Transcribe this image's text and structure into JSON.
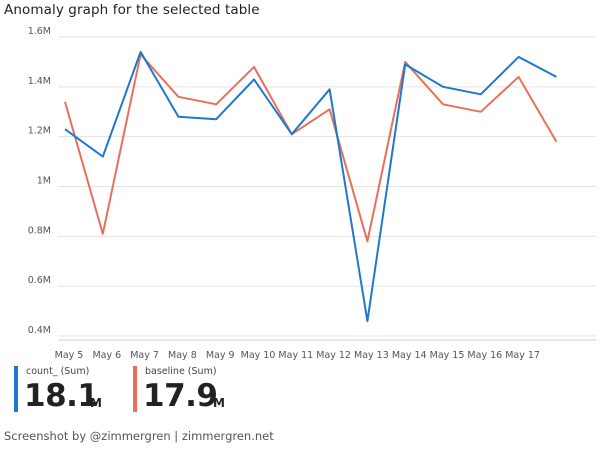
{
  "title": "Anomaly graph for the selected table",
  "footer": "Screenshot by @zimmergren | zimmergren.net",
  "legend": [
    {
      "name": "count_ (Sum)",
      "value": "18.1",
      "unit": "M",
      "color": "#1f77d0"
    },
    {
      "name": "baseline (Sum)",
      "value": "17.9",
      "unit": "M",
      "color": "#e8705a"
    }
  ],
  "chart_data": {
    "type": "line",
    "x": [
      "May 5",
      "May 6",
      "May 7",
      "May 8",
      "May 9",
      "May 10",
      "May 11",
      "May 12",
      "May 13",
      "May 14",
      "May 15",
      "May 16",
      "May 17",
      ""
    ],
    "series": [
      {
        "name": "count_ (Sum)",
        "color": "#1f77d0",
        "values": [
          1.23,
          1.12,
          1.54,
          1.28,
          1.27,
          1.43,
          1.21,
          1.39,
          0.46,
          1.49,
          1.4,
          1.37,
          1.52,
          1.44
        ]
      },
      {
        "name": "baseline (Sum)",
        "color": "#e8705a",
        "values": [
          1.34,
          0.81,
          1.53,
          1.36,
          1.33,
          1.48,
          1.21,
          1.31,
          0.78,
          1.5,
          1.33,
          1.3,
          1.44,
          1.18
        ]
      }
    ],
    "yticks": [
      "0.4M",
      "0.6M",
      "0.8M",
      "1M",
      "1.2M",
      "1.4M",
      "1.6M"
    ],
    "ytick_values": [
      0.4,
      0.6,
      0.8,
      1.0,
      1.2,
      1.4,
      1.6
    ],
    "ylim": [
      0.4,
      1.6
    ],
    "grid": true
  }
}
